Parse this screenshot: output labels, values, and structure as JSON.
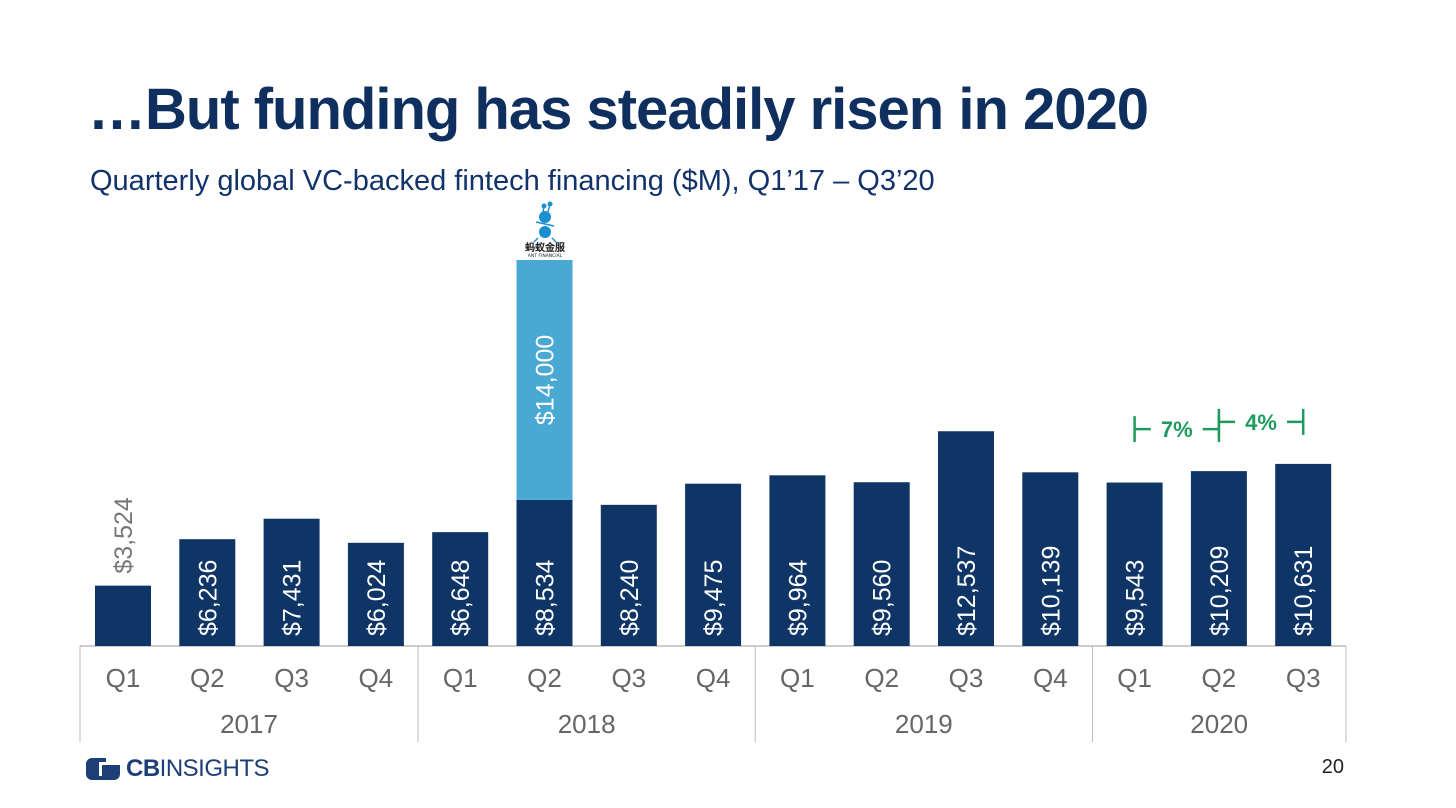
{
  "page": {
    "title": "…But funding has steadily risen in 2020",
    "subtitle": "Quarterly global VC-backed fintech financing ($M), Q1’17 – Q3’20",
    "page_number": "20",
    "logo": {
      "bold": "CB",
      "rest": "INSIGHTS"
    },
    "ant_logo": {
      "line1": "蚂蚁金服",
      "line2": "ANT FINANCIAL"
    }
  },
  "colors": {
    "bar": "#0f3466",
    "ant_bar": "#4aa9d2",
    "label_on_bar": "#ffffff",
    "label_above_bar": "#777777",
    "annotation": "#1f9a5e",
    "axis_text": "#666666",
    "axis_line": "#bbbbbb"
  },
  "chart_data": {
    "type": "bar",
    "stacked": true,
    "categories": [
      "Q1",
      "Q2",
      "Q3",
      "Q4",
      "Q1",
      "Q2",
      "Q3",
      "Q4",
      "Q1",
      "Q2",
      "Q3",
      "Q4",
      "Q1",
      "Q2",
      "Q3"
    ],
    "years": [
      {
        "label": "2017",
        "quarters": 4
      },
      {
        "label": "2018",
        "quarters": 4
      },
      {
        "label": "2019",
        "quarters": 4
      },
      {
        "label": "2020",
        "quarters": 3
      }
    ],
    "series": [
      {
        "values": [
          3524,
          6236,
          7431,
          6024,
          6648,
          8534,
          8240,
          9475,
          9964,
          9560,
          12537,
          10139,
          9543,
          10209,
          10631
        ]
      },
      {
        "values": [
          0,
          0,
          0,
          0,
          0,
          14000,
          0,
          0,
          0,
          0,
          0,
          0,
          0,
          0,
          0
        ]
      }
    ],
    "data_labels": [
      "$3,524",
      "$6,236",
      "$7,431",
      "$6,024",
      "$6,648",
      "$8,534",
      "$8,240",
      "$9,475",
      "$9,964",
      "$9,560",
      "$12,537",
      "$10,139",
      "$9,543",
      "$10,209",
      "$10,631"
    ],
    "stack_labels": {
      "5": "$14,000"
    },
    "annotations": [
      {
        "from": 12,
        "to": 13,
        "text": "7%"
      },
      {
        "from": 13,
        "to": 14,
        "text": "4%"
      }
    ],
    "ylim": [
      0,
      22534
    ],
    "grid": false,
    "legend": "none"
  }
}
